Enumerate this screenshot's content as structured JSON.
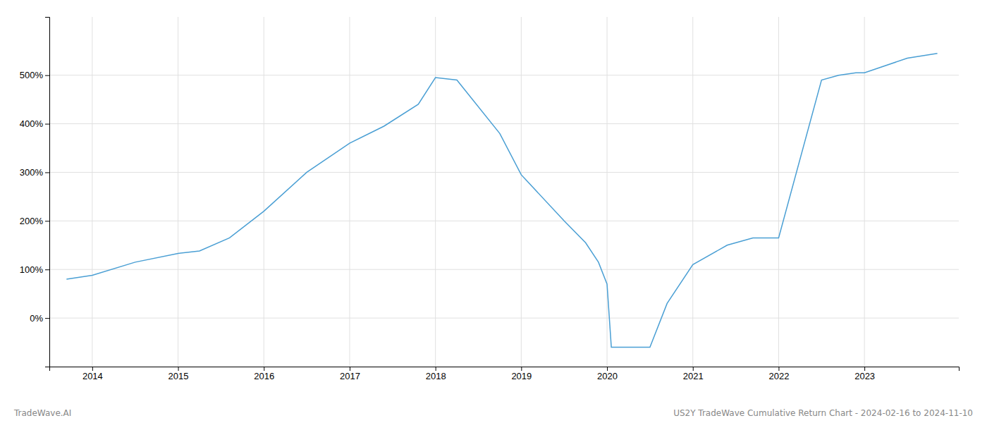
{
  "chart_data": {
    "type": "line",
    "x": [
      2013.7,
      2014.0,
      2014.5,
      2015.0,
      2015.25,
      2015.6,
      2016.0,
      2016.5,
      2017.0,
      2017.4,
      2017.8,
      2018.0,
      2018.25,
      2018.75,
      2019.0,
      2019.5,
      2019.75,
      2019.9,
      2020.0,
      2020.05,
      2020.5,
      2020.7,
      2021.0,
      2021.4,
      2021.7,
      2022.0,
      2022.5,
      2022.7,
      2022.9,
      2023.0,
      2023.5,
      2023.85
    ],
    "values": [
      80,
      88,
      115,
      133,
      138,
      165,
      220,
      300,
      360,
      395,
      440,
      495,
      490,
      380,
      295,
      200,
      155,
      115,
      70,
      -60,
      -60,
      30,
      110,
      150,
      165,
      165,
      490,
      500,
      505,
      505,
      535,
      545
    ],
    "color": "#4a9fd4",
    "xlim": [
      2013.5,
      2024.1
    ],
    "ylim": [
      -100,
      620
    ],
    "xticks": [
      2014,
      2015,
      2016,
      2017,
      2018,
      2019,
      2020,
      2021,
      2022,
      2023
    ],
    "yticks": [
      {
        "value": 0,
        "label": "0%"
      },
      {
        "value": 100,
        "label": "100%"
      },
      {
        "value": 200,
        "label": "200%"
      },
      {
        "value": 300,
        "label": "300%"
      },
      {
        "value": 400,
        "label": "400%"
      },
      {
        "value": 500,
        "label": "500%"
      }
    ],
    "grid": true,
    "annotations": [
      "TradeWave.AI",
      "US2Y TradeWave Cumulative Return Chart - 2024-02-16 to 2024-11-10"
    ]
  }
}
